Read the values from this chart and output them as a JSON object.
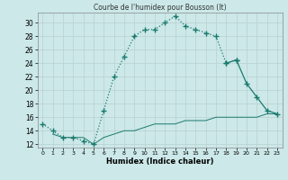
{
  "title": "Courbe de l'humidex pour Bousson (It)",
  "xlabel": "Humidex (Indice chaleur)",
  "xlim": [
    -0.5,
    23.5
  ],
  "ylim": [
    11.5,
    31.5
  ],
  "yticks": [
    12,
    14,
    16,
    18,
    20,
    22,
    24,
    26,
    28,
    30
  ],
  "xticks": [
    0,
    1,
    2,
    3,
    4,
    5,
    6,
    7,
    8,
    9,
    10,
    11,
    12,
    13,
    14,
    15,
    16,
    17,
    18,
    19,
    20,
    21,
    22,
    23
  ],
  "bg_color": "#cce8e8",
  "grid_color": "#b8d8d8",
  "line_color": "#1a7a6e",
  "line1_x": [
    0,
    1,
    2,
    3,
    4,
    5,
    6,
    7,
    8,
    9,
    10,
    11,
    12,
    13,
    14,
    15,
    16,
    17,
    18,
    19
  ],
  "line1_y": [
    15,
    14,
    13,
    13,
    12.5,
    12,
    17,
    22,
    25,
    28,
    29,
    29,
    30,
    31,
    29.5,
    29,
    28.5,
    28,
    24,
    24.5
  ],
  "line2_x": [
    18,
    19,
    20,
    21,
    22,
    23
  ],
  "line2_y": [
    24,
    24.5,
    21,
    19,
    17,
    16.5
  ],
  "line3_x": [
    1,
    2,
    3,
    4,
    5,
    6,
    7,
    8,
    9,
    10,
    11,
    12,
    13,
    14,
    15,
    16,
    17,
    18,
    19,
    20,
    21,
    22,
    23
  ],
  "line3_y": [
    13.5,
    13,
    13,
    13,
    12,
    13,
    13.5,
    14,
    14,
    14.5,
    15,
    15,
    15,
    15.5,
    15.5,
    15.5,
    16,
    16,
    16,
    16,
    16,
    16.5,
    16.5
  ]
}
